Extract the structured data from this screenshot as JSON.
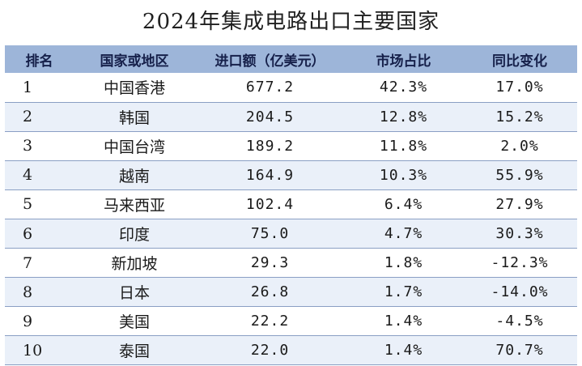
{
  "title": "2024年集成电路出口主要国家",
  "headers": [
    "排名",
    "国家或地区",
    "进口额（亿美元）",
    "市场占比",
    "同比变化"
  ],
  "rows": [
    {
      "rank": "1",
      "region": "中国香港",
      "amount": "677.2",
      "share": "42.3%",
      "yoy": "17.0%"
    },
    {
      "rank": "2",
      "region": "韩国",
      "amount": "204.5",
      "share": "12.8%",
      "yoy": "15.2%"
    },
    {
      "rank": "3",
      "region": "中国台湾",
      "amount": "189.2",
      "share": "11.8%",
      "yoy": "2.0%"
    },
    {
      "rank": "4",
      "region": "越南",
      "amount": "164.9",
      "share": "10.3%",
      "yoy": "55.9%"
    },
    {
      "rank": "5",
      "region": "马来西亚",
      "amount": "102.4",
      "share": "6.4%",
      "yoy": "27.9%"
    },
    {
      "rank": "6",
      "region": "印度",
      "amount": "75.0",
      "share": "4.7%",
      "yoy": "30.3%"
    },
    {
      "rank": "7",
      "region": "新加坡",
      "amount": "29.3",
      "share": "1.8%",
      "yoy": "-12.3%"
    },
    {
      "rank": "8",
      "region": "日本",
      "amount": "26.8",
      "share": "1.7%",
      "yoy": "-14.0%"
    },
    {
      "rank": "9",
      "region": "美国",
      "amount": "22.2",
      "share": "1.4%",
      "yoy": "-4.5%"
    },
    {
      "rank": "10",
      "region": "泰国",
      "amount": "22.0",
      "share": "1.4%",
      "yoy": "70.7%"
    }
  ]
}
